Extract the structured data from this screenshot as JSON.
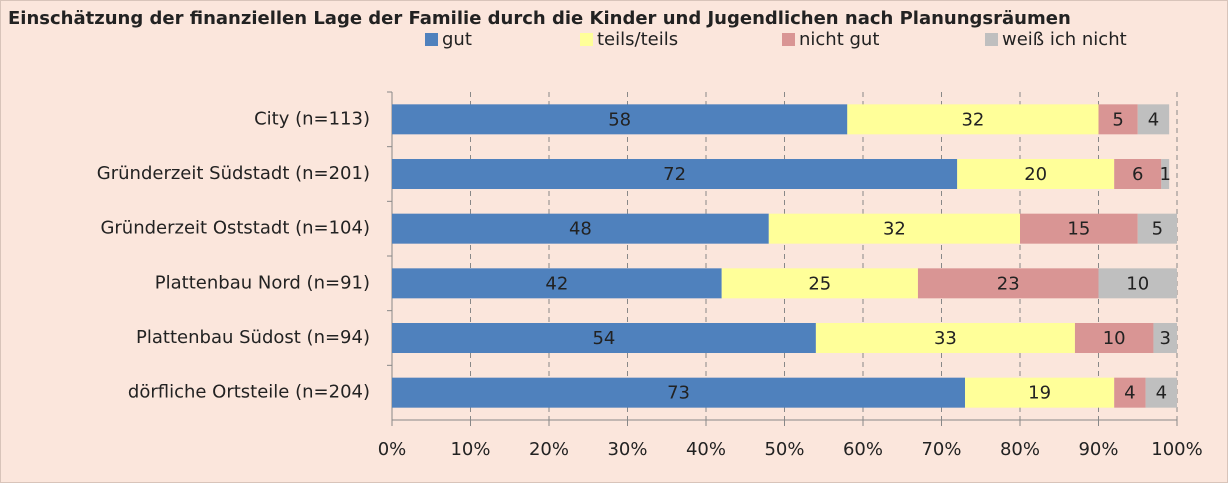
{
  "chart_data": {
    "type": "stacked_barh",
    "title": "Einschätzung der finanziellen Lage der Familie durch die Kinder und Jugendlichen nach Planungsräumen",
    "categories": [
      "City (n=113)",
      "Gründerzeit Südstadt (n=201)",
      "Gründerzeit Oststadt (n=104)",
      "Plattenbau Nord (n=91)",
      "Plattenbau Südost (n=94)",
      "dörfliche Ortsteile (n=204)"
    ],
    "series": [
      {
        "name": "gut",
        "color": "#4f81bd",
        "values": [
          58,
          72,
          48,
          42,
          54,
          73
        ]
      },
      {
        "name": "teils/teils",
        "color": "#ffff99",
        "values": [
          32,
          20,
          32,
          25,
          33,
          19
        ]
      },
      {
        "name": "nicht gut",
        "color": "#d99594",
        "values": [
          5,
          6,
          15,
          23,
          10,
          4
        ]
      },
      {
        "name": "weiß ich nicht",
        "color": "#bfbfbf",
        "values": [
          4,
          1,
          5,
          10,
          3,
          4
        ]
      }
    ],
    "xlim": [
      0,
      100
    ],
    "xticks": [
      {
        "value": 0,
        "label": "0%"
      },
      {
        "value": 10,
        "label": "10%"
      },
      {
        "value": 20,
        "label": "20%"
      },
      {
        "value": 30,
        "label": "30%"
      },
      {
        "value": 40,
        "label": "40%"
      },
      {
        "value": 50,
        "label": "50%"
      },
      {
        "value": 60,
        "label": "60%"
      },
      {
        "value": 70,
        "label": "70%"
      },
      {
        "value": 80,
        "label": "80%"
      },
      {
        "value": 90,
        "label": "90%"
      },
      {
        "value": 100,
        "label": "100%"
      }
    ],
    "grid": true,
    "legend": "top"
  }
}
